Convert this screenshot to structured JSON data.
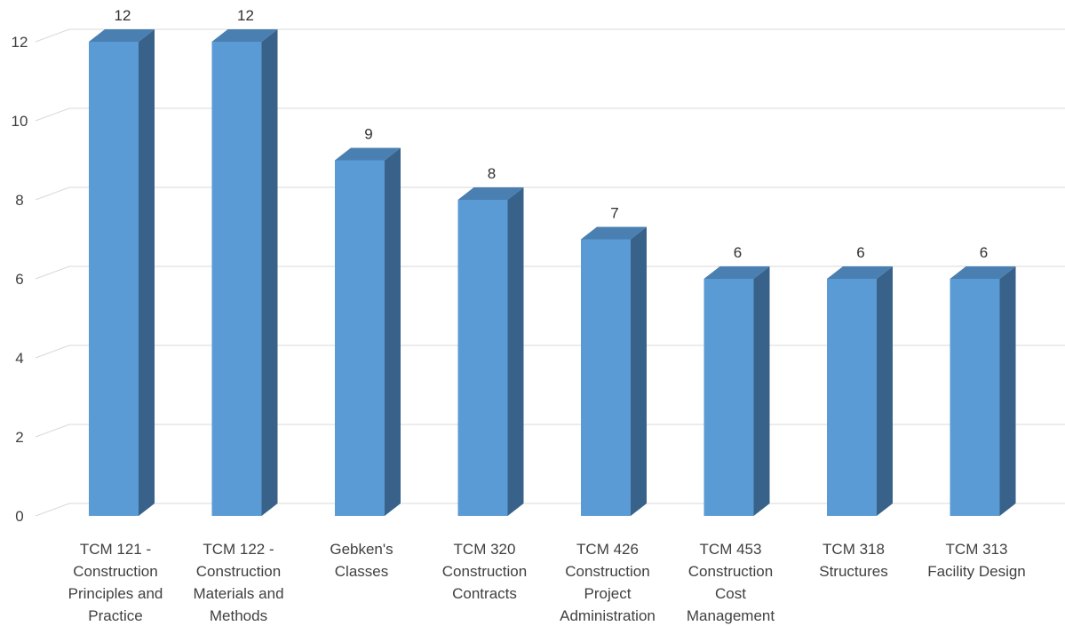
{
  "chart_data": {
    "type": "bar",
    "style": "3d-column",
    "title": "",
    "xlabel": "",
    "ylabel": "",
    "ylim": [
      0,
      12
    ],
    "yticks": [
      0,
      2,
      4,
      6,
      8,
      10,
      12
    ],
    "grid": true,
    "legend": "none",
    "categories": [
      [
        "TCM 121 -",
        "Construction",
        "Principles and",
        "Practice"
      ],
      [
        "TCM 122 -",
        "Construction",
        "Materials and",
        "Methods"
      ],
      [
        "Gebken's",
        "Classes"
      ],
      [
        "TCM 320",
        "Construction",
        "Contracts"
      ],
      [
        "TCM 426",
        "Construction",
        "Project",
        "Administration"
      ],
      [
        "TCM 453",
        "Construction",
        "Cost",
        "Management"
      ],
      [
        "TCM 318",
        "Structures"
      ],
      [
        "TCM 313",
        "Facility Design"
      ]
    ],
    "values": [
      12,
      12,
      9,
      8,
      7,
      6,
      6,
      6
    ],
    "colors": {
      "front": "#5b9bd5",
      "side": "#386289",
      "top": "#4a7fb2",
      "grid": "#d9d9d9"
    }
  }
}
